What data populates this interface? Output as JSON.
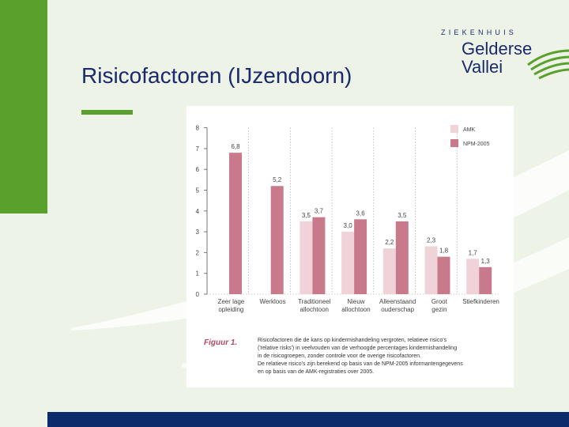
{
  "slide": {
    "title": "Risicofactoren (IJzendoorn)"
  },
  "logo": {
    "top": "ZIEKENHUIS",
    "line1": "Gelderse",
    "line2": "Vallei"
  },
  "colors": {
    "accent_green": "#5aa02c",
    "title_blue": "#1a2a6b",
    "footer_navy": "#0d2a6a",
    "amk": "#f0d3d9",
    "npm": "#c87a8c"
  },
  "chart_data": {
    "type": "bar",
    "categories": [
      [
        "Zeer lage",
        "opleiding"
      ],
      [
        "Werkloos"
      ],
      [
        "Traditioneel",
        "allochtoon"
      ],
      [
        "Nieuw",
        "allochtoon"
      ],
      [
        "Alleenstaand",
        "ouderschap"
      ],
      [
        "Groot",
        "gezin"
      ],
      [
        "Stiefkinderen"
      ]
    ],
    "series": [
      {
        "name": "AMK",
        "values": [
          null,
          null,
          3.5,
          3.0,
          2.2,
          2.3,
          1.7
        ],
        "labels": [
          "",
          "",
          "3,5",
          "3,0",
          "2,2",
          "2,3",
          "1,7"
        ]
      },
      {
        "name": "NPM-2005",
        "values": [
          6.8,
          5.2,
          3.7,
          3.6,
          3.5,
          1.8,
          1.3
        ],
        "labels": [
          "6,8",
          "5,2",
          "3,7",
          "3,6",
          "3,5",
          "1,8",
          "1,3"
        ]
      }
    ],
    "yticks": [
      "0",
      "1",
      "2",
      "3",
      "4",
      "5",
      "6",
      "7",
      "8"
    ],
    "ylim": [
      0,
      8
    ],
    "legend_position": "top-right",
    "caption_label": "Figuur 1.",
    "caption_lines": [
      "Risicofactoren die de kans op kindermishandeling vergroten, relatieve risico's",
      "('relative risks') in veelvouden van de verhoogde percentages kindermishandeling",
      "in de risicogroepen, zonder controle voor de overige risicofactoren.",
      "De relatieve risico's zijn berekend op basis van de NPM-2005 informantengegevens",
      "en op basis van de AMK-registraties over 2005."
    ]
  }
}
